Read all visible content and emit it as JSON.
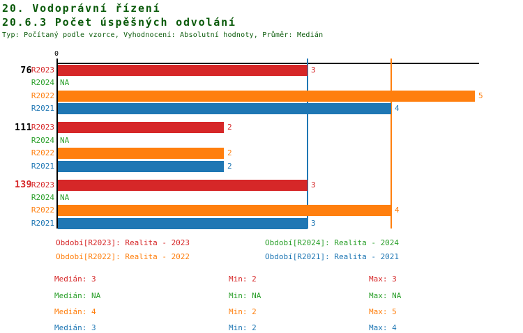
{
  "colors": {
    "red": "#d62728",
    "green": "#2ca02c",
    "orange": "#ff7f0e",
    "blue": "#1f77b4",
    "black": "#000000",
    "title": "#0a5a0a"
  },
  "header": {
    "title1": "20. Vodoprávní řízení",
    "title2": "20.6.3 Počet úspěšných odvolání",
    "subtitle": "Typ: Počítaný podle vzorce, Vyhodnocení: Absolutní hodnoty, Průměr: Medián"
  },
  "chart_data": {
    "type": "bar",
    "orientation": "horizontal",
    "title": "20.6.3 Počet úspěšných odvolání",
    "axis": {
      "origin_label": "0",
      "xlim": [
        0,
        5
      ],
      "grid": false
    },
    "series_order": [
      "R2023",
      "R2024",
      "R2022",
      "R2021"
    ],
    "categories": [
      "76",
      "111",
      "139"
    ],
    "groups": [
      {
        "label": "76",
        "label_color": "black",
        "rows": [
          {
            "series": "R2023",
            "color": "red",
            "value": 3,
            "display": "3"
          },
          {
            "series": "R2024",
            "color": "green",
            "value": null,
            "display": "NA"
          },
          {
            "series": "R2022",
            "color": "orange",
            "value": 5,
            "display": "5"
          },
          {
            "series": "R2021",
            "color": "blue",
            "value": 4,
            "display": "4"
          }
        ]
      },
      {
        "label": "111",
        "label_color": "black",
        "rows": [
          {
            "series": "R2023",
            "color": "red",
            "value": 2,
            "display": "2"
          },
          {
            "series": "R2024",
            "color": "green",
            "value": null,
            "display": "NA"
          },
          {
            "series": "R2022",
            "color": "orange",
            "value": 2,
            "display": "2"
          },
          {
            "series": "R2021",
            "color": "blue",
            "value": 2,
            "display": "2"
          }
        ]
      },
      {
        "label": "139",
        "label_color": "red",
        "rows": [
          {
            "series": "R2023",
            "color": "red",
            "value": 3,
            "display": "3"
          },
          {
            "series": "R2024",
            "color": "green",
            "value": null,
            "display": "NA"
          },
          {
            "series": "R2022",
            "color": "orange",
            "value": 4,
            "display": "4"
          },
          {
            "series": "R2021",
            "color": "blue",
            "value": 3,
            "display": "3"
          }
        ]
      }
    ],
    "reference_lines": [
      {
        "color": "blue",
        "value": 3
      },
      {
        "color": "orange",
        "value": 4
      }
    ]
  },
  "legend": [
    {
      "text": "Období[R2023]: Realita - 2023",
      "color": "red",
      "col": 0,
      "row": 0
    },
    {
      "text": "Období[R2024]: Realita - 2024",
      "color": "green",
      "col": 1,
      "row": 0
    },
    {
      "text": "Období[R2022]: Realita - 2022",
      "color": "orange",
      "col": 0,
      "row": 1
    },
    {
      "text": "Období[R2021]: Realita - 2021",
      "color": "blue",
      "col": 1,
      "row": 1
    }
  ],
  "stats": [
    {
      "color": "red",
      "cells": [
        "Medián: 3",
        "Min: 2",
        "Max: 3"
      ]
    },
    {
      "color": "green",
      "cells": [
        "Medián: NA",
        "Min: NA",
        "Max: NA"
      ]
    },
    {
      "color": "orange",
      "cells": [
        "Medián: 4",
        "Min: 2",
        "Max: 5"
      ]
    },
    {
      "color": "blue",
      "cells": [
        "Medián: 3",
        "Min: 2",
        "Max: 4"
      ]
    }
  ]
}
